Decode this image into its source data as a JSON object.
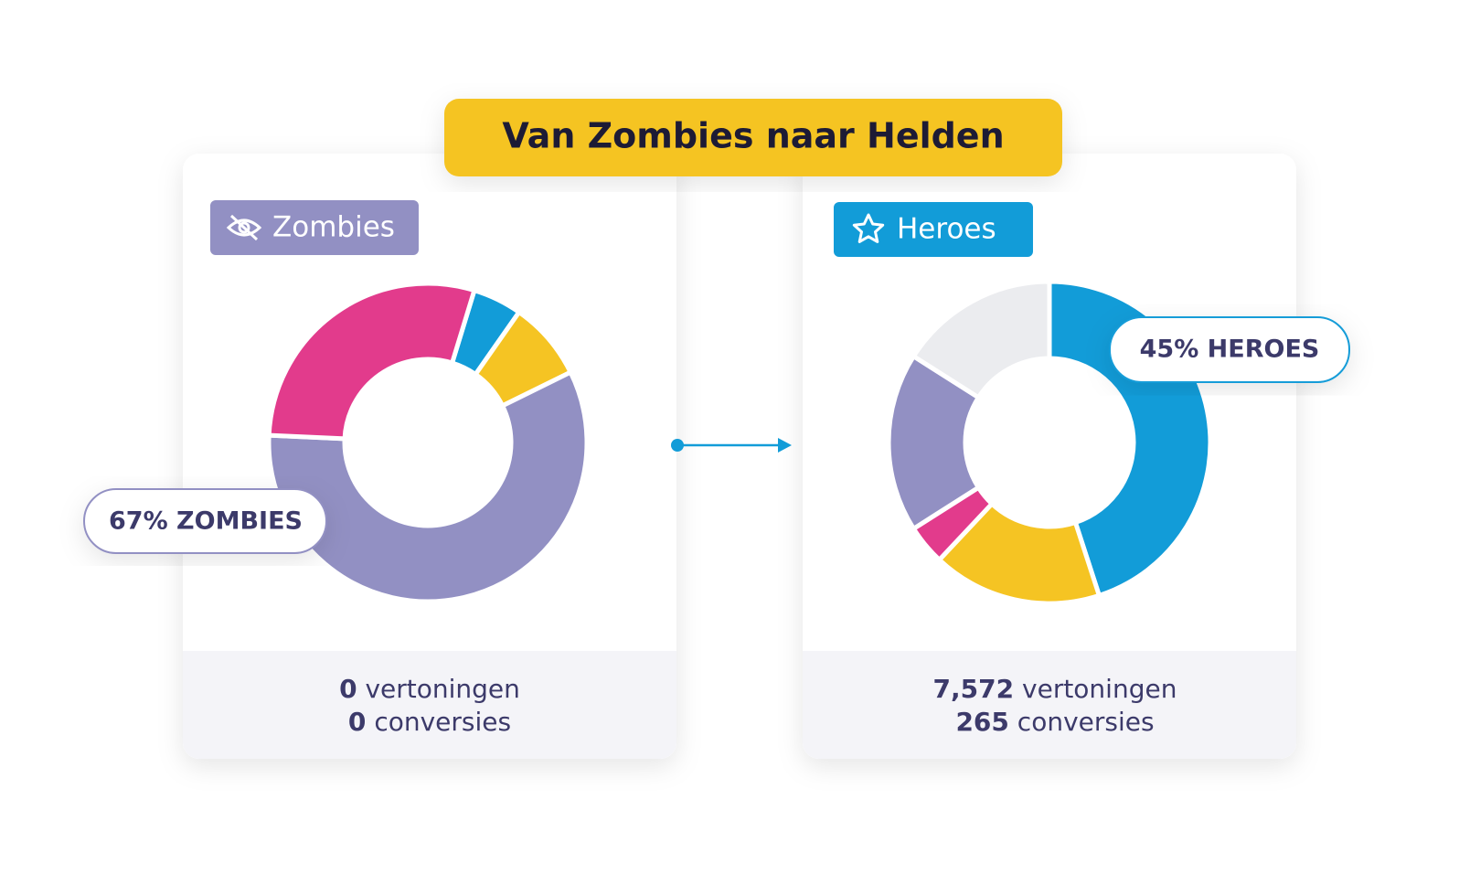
{
  "title": "Van Zombies naar Helden",
  "chart_data": [
    {
      "type": "pie",
      "badge": "Zombies",
      "callout": "67% ZOMBIES",
      "values": [
        5,
        8,
        58,
        29
      ],
      "colors": [
        "#129cd8",
        "#f5c423",
        "#9290c3",
        "#e23b8c"
      ],
      "stats": [
        {
          "value": "0",
          "label": "vertoningen"
        },
        {
          "value": "0",
          "label": "conversies"
        }
      ]
    },
    {
      "type": "pie",
      "badge": "Heroes",
      "callout": "45% HEROES",
      "values": [
        45,
        17,
        4,
        18,
        16
      ],
      "colors": [
        "#129cd8",
        "#f5c423",
        "#e23b8c",
        "#9290c3",
        "#ebecef"
      ],
      "stats": [
        {
          "value": "7,572",
          "label": "vertoningen"
        },
        {
          "value": "265",
          "label": "conversies"
        }
      ]
    }
  ]
}
